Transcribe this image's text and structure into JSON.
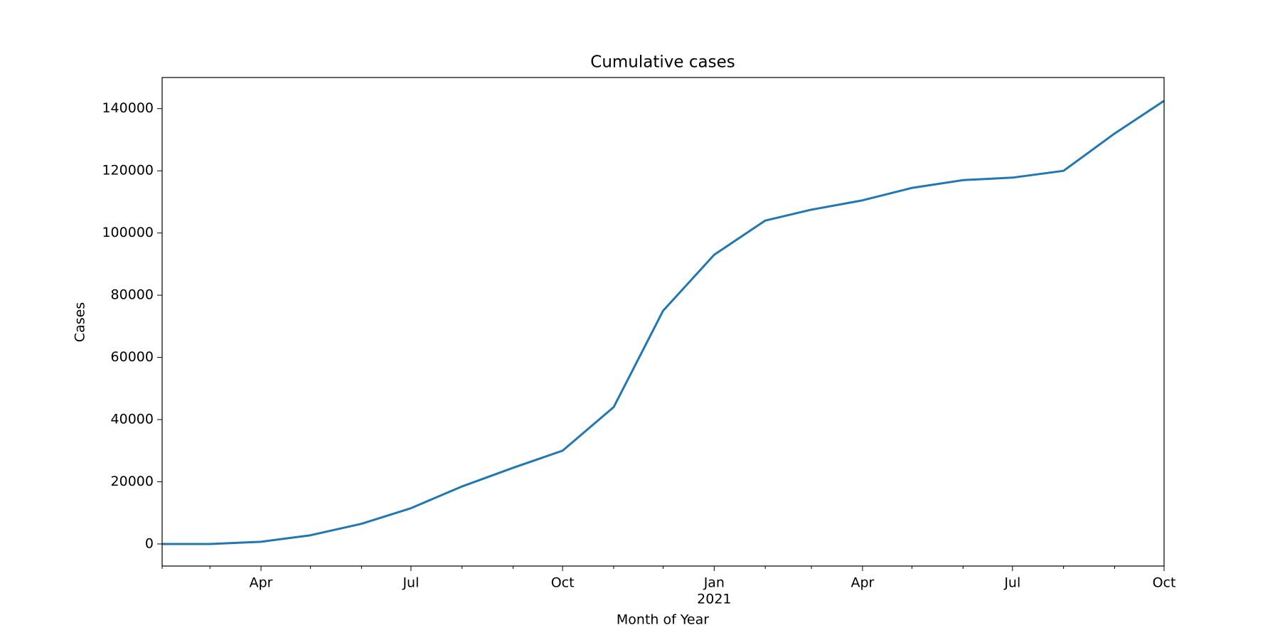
{
  "chart_data": {
    "type": "line",
    "title": "Cumulative cases",
    "xlabel": "Month of Year",
    "ylabel": "Cases",
    "x": [
      "2020-02",
      "2020-03",
      "2020-04",
      "2020-05",
      "2020-06",
      "2020-07",
      "2020-08",
      "2020-09",
      "2020-10",
      "2020-11",
      "2020-12",
      "2021-01",
      "2021-02",
      "2021-03",
      "2021-04",
      "2021-05",
      "2021-06",
      "2021-07",
      "2021-08",
      "2021-09",
      "2021-10"
    ],
    "values": [
      0,
      0,
      700,
      2800,
      6500,
      11500,
      18500,
      24500,
      30000,
      44000,
      75000,
      93000,
      104000,
      107500,
      110500,
      114500,
      117000,
      117800,
      120000,
      132000,
      142500
    ],
    "color": "#1f77b4",
    "xlim": [
      "2020-02",
      "2021-10"
    ],
    "xticks": [
      {
        "value": "2020-04",
        "label": "Apr"
      },
      {
        "value": "2020-07",
        "label": "Jul"
      },
      {
        "value": "2020-10",
        "label": "Oct"
      },
      {
        "value": "2021-01",
        "label": "Jan"
      },
      {
        "value": "2021-04",
        "label": "Apr"
      },
      {
        "value": "2021-07",
        "label": "Jul"
      },
      {
        "value": "2021-10",
        "label": "Oct"
      }
    ],
    "xticks_year": [
      {
        "value": "2021-01",
        "label": "2021"
      }
    ],
    "xminorticks": [
      "2020-02",
      "2020-03",
      "2020-05",
      "2020-06",
      "2020-08",
      "2020-09",
      "2020-11",
      "2020-12",
      "2021-02",
      "2021-03",
      "2021-05",
      "2021-06",
      "2021-08",
      "2021-09"
    ],
    "ylim": [
      -7100,
      150000
    ],
    "yticks": [
      0,
      20000,
      40000,
      60000,
      80000,
      100000,
      120000,
      140000
    ],
    "grid": false
  }
}
